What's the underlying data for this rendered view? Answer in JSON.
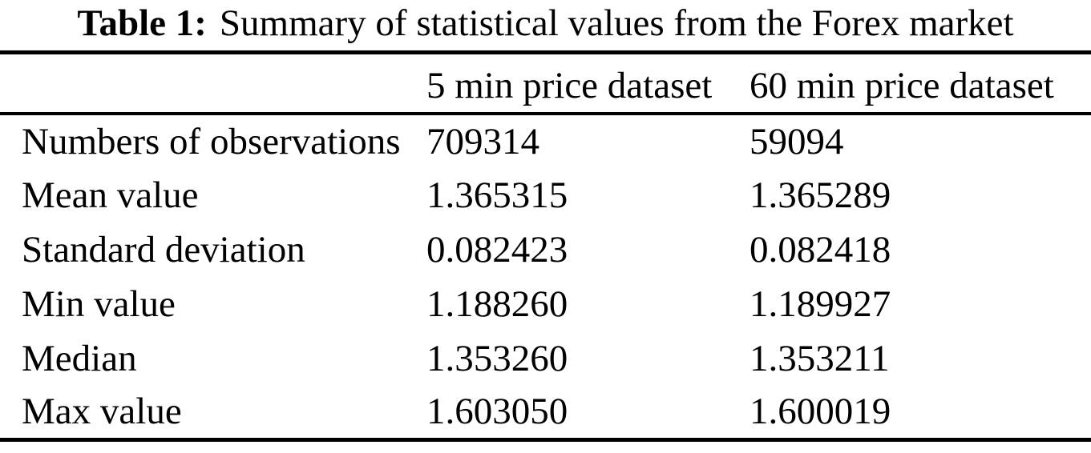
{
  "caption": {
    "label": "Table 1:",
    "text": "Summary of statistical values from the Forex market"
  },
  "table": {
    "columns": [
      "",
      "5 min price dataset",
      "60 min price dataset"
    ],
    "rows": [
      {
        "label": "Numbers of observations",
        "values": [
          "709314",
          "59094"
        ]
      },
      {
        "label": "Mean value",
        "values": [
          "1.365315",
          "1.365289"
        ]
      },
      {
        "label": "Standard deviation",
        "values": [
          "0.082423",
          "0.082418"
        ]
      },
      {
        "label": "Min value",
        "values": [
          "1.188260",
          "1.189927"
        ]
      },
      {
        "label": "Median",
        "values": [
          "1.353260",
          "1.353211"
        ]
      },
      {
        "label": "Max value",
        "values": [
          "1.603050",
          "1.600019"
        ]
      }
    ]
  },
  "chart_data": {
    "type": "table",
    "title": "Table 1: Summary of statistical values from the Forex market",
    "columns": [
      "",
      "5 min price dataset",
      "60 min price dataset"
    ],
    "rows": [
      [
        "Numbers of observations",
        "709314",
        "59094"
      ],
      [
        "Mean value",
        "1.365315",
        "1.365289"
      ],
      [
        "Standard deviation",
        "0.082423",
        "0.082418"
      ],
      [
        "Min value",
        "1.188260",
        "1.189927"
      ],
      [
        "Median",
        "1.353260",
        "1.353211"
      ],
      [
        "Max value",
        "1.603050",
        "1.600019"
      ]
    ]
  },
  "colors": {
    "text": "#000000",
    "background": "#ffffff",
    "rule": "#000000"
  }
}
